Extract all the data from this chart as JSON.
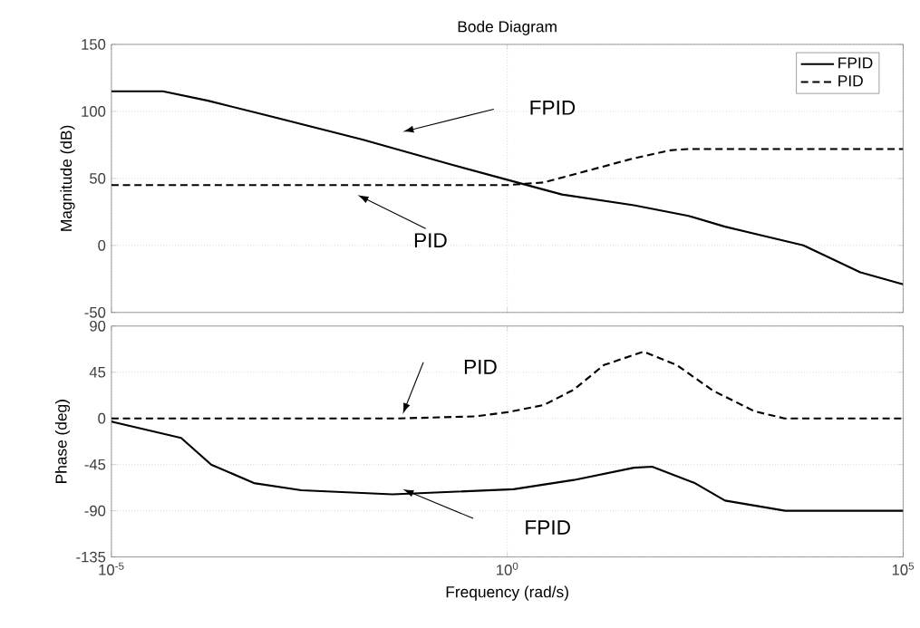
{
  "chart_data": [
    {
      "type": "line",
      "title": "Bode Diagram",
      "ylabel": "Magnitude (dB)",
      "log": "x",
      "grid": true,
      "legend": "top right",
      "tick_labels": "y",
      "xlim": [
        1e-05,
        100000
      ],
      "ylim": [
        -50,
        150
      ],
      "xticks": [
        {
          "value": 1e-05,
          "label": null
        },
        {
          "value": 1,
          "label": null
        },
        {
          "value": 100000,
          "label": null
        }
      ],
      "yticks": [
        -50,
        0,
        50,
        100,
        150
      ],
      "series": [
        {
          "name": "FPID",
          "color": "#000000",
          "line_style": "solid",
          "x": [
            1e-05,
            4.47e-05,
            0.000166,
            0.00107,
            0.0148,
            0.204,
            1,
            4.9,
            39.8,
            195,
            562,
            5500,
            28800,
            100000
          ],
          "values": [
            115,
            115,
            108,
            96,
            79,
            60,
            49,
            38,
            30,
            22,
            14,
            0,
            -20,
            -29
          ]
        },
        {
          "name": "PID",
          "color": "#000000",
          "line_style": "dashed",
          "x": [
            1e-05,
            1,
            2.88,
            10.7,
            39.8,
            115,
            195,
            100000
          ],
          "values": [
            45,
            45,
            47,
            56,
            65,
            71,
            72,
            72
          ]
        }
      ],
      "annotations": [
        "FPID",
        "PID"
      ]
    },
    {
      "type": "line",
      "xlabel": "Frequency  (rad/s)",
      "ylabel": "Phase (deg)",
      "log": "x",
      "grid": true,
      "xlim": [
        1e-05,
        100000
      ],
      "ylim": [
        -135,
        90
      ],
      "xticks": [
        {
          "value": 1e-05,
          "label": "10$^{-5}$"
        },
        {
          "value": 1,
          "label": "10$^{0}$"
        },
        {
          "value": 100000,
          "label": "10$^{5}$"
        }
      ],
      "yticks": [
        -135,
        -90,
        -45,
        0,
        45,
        90
      ],
      "series": [
        {
          "color": "#000000",
          "line_style": "solid",
          "x": [
            1e-05,
            1.12e-05,
            7.59e-05,
            0.000182,
            0.000631,
            0.00251,
            0.0355,
            1.2,
            6.92,
            39.8,
            67.6,
            234,
            562,
            3240,
            100000
          ],
          "values": [
            -3,
            -4,
            -19,
            -45,
            -63,
            -70,
            -74,
            -69,
            -60,
            -48,
            -47,
            -63,
            -80,
            -90,
            -90
          ]
        },
        {
          "color": "#000000",
          "line_style": "dashed",
          "x": [
            1e-05,
            0.0427,
            0.398,
            1,
            2.88,
            6.92,
            16.6,
            52.5,
            138,
            398,
            1320,
            3160,
            100000
          ],
          "values": [
            0,
            0,
            2,
            6,
            13,
            28,
            52,
            65,
            52,
            27,
            7,
            0,
            0
          ]
        }
      ],
      "annotations": [
        "PID",
        "FPID"
      ]
    }
  ]
}
